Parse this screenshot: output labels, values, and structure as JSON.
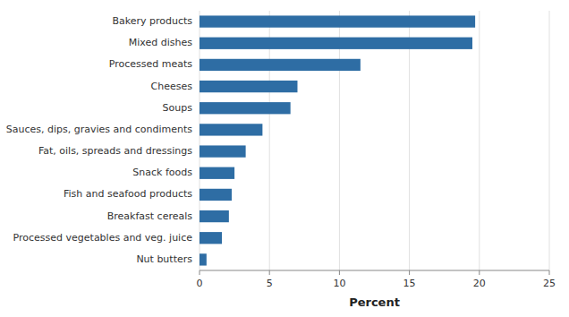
{
  "chart_data": {
    "type": "bar",
    "orientation": "horizontal",
    "categories": [
      "Nut butters",
      "Processed vegetables and veg. juice",
      "Breakfast cereals",
      "Fish and seafood products",
      "Snack foods",
      "Fat, oils, spreads and dressings",
      "Sauces, dips, gravies and condiments",
      "Soups",
      "Cheeses",
      "Processed meats",
      "Mixed dishes",
      "Bakery products"
    ],
    "values": [
      0.5,
      1.6,
      2.1,
      2.3,
      2.5,
      3.3,
      4.5,
      6.5,
      7.0,
      11.5,
      19.5,
      19.7
    ],
    "color": "#2E6DA4",
    "xlabel": "Percent",
    "xlim": [
      0,
      25
    ],
    "xticks": [
      0,
      5,
      10,
      15,
      20,
      25
    ],
    "grid": true
  }
}
